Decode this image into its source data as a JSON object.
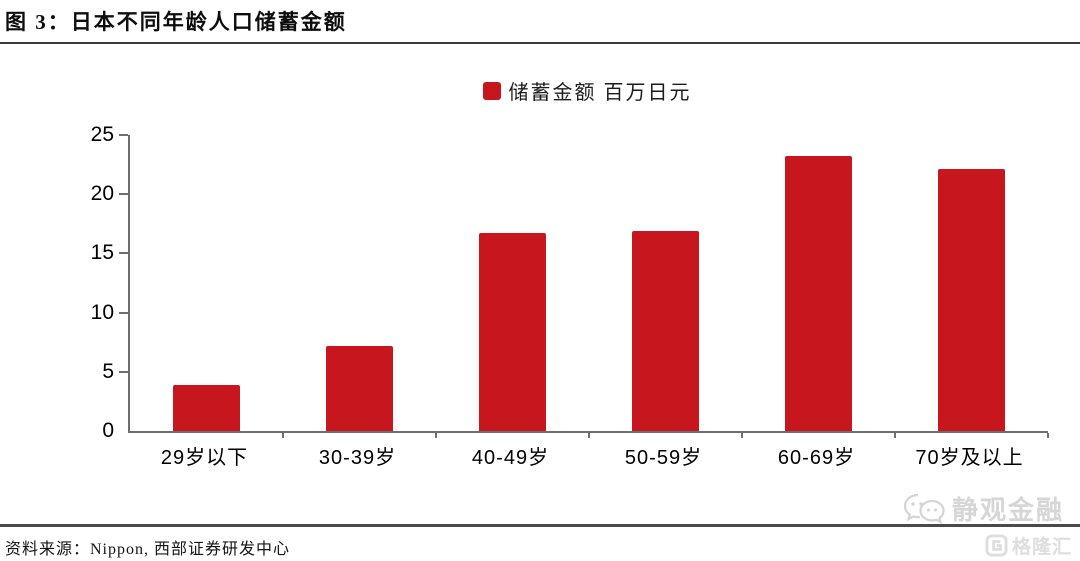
{
  "chart_data": {
    "type": "bar",
    "title": "图 3：日本不同年龄人口储蓄金额",
    "legend_label": "储蓄金额 百万日元",
    "categories": [
      "29岁以下",
      "30-39岁",
      "40-49岁",
      "50-59岁",
      "60-69岁",
      "70岁及以上"
    ],
    "values": [
      3.9,
      7.2,
      16.7,
      16.9,
      23.2,
      22.1
    ],
    "ylim": [
      0,
      25
    ],
    "yticks": [
      0,
      5,
      10,
      15,
      20,
      25
    ],
    "bar_color": "#C8161E",
    "grid": false,
    "legend_position": "top-center"
  },
  "footer": {
    "source": "资料来源：Nippon, 西部证券研发中心"
  },
  "watermarks": {
    "wechat_account": "静观金融",
    "platform": "格隆汇"
  }
}
